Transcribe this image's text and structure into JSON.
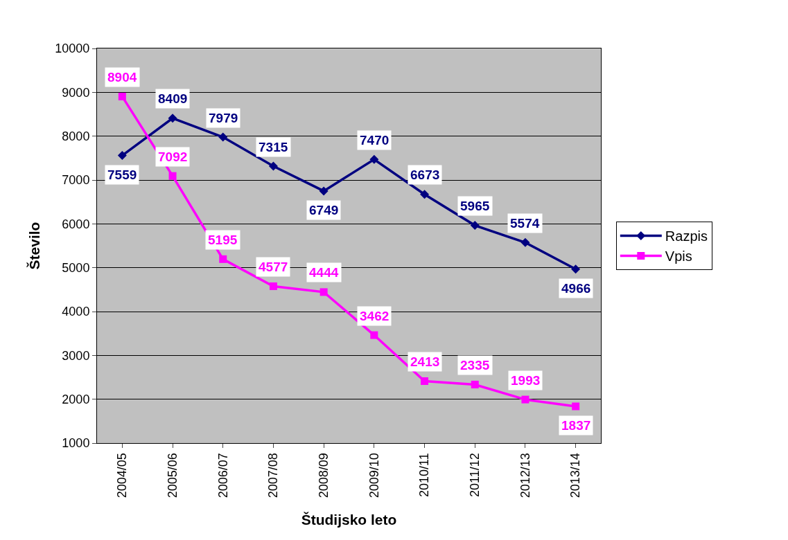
{
  "chart_data": {
    "type": "line",
    "xlabel": "Študijsko leto",
    "ylabel": "Število",
    "categories": [
      "2004/05",
      "2005/06",
      "2006/07",
      "2007/08",
      "2008/09",
      "2009/10",
      "2010/11",
      "2011/12",
      "2012/13",
      "2013/14"
    ],
    "series": [
      {
        "name": "Razpis",
        "color": "#000080",
        "marker": "diamond",
        "values": [
          7559,
          8409,
          7979,
          7315,
          6749,
          7470,
          6673,
          5965,
          5574,
          4966
        ]
      },
      {
        "name": "Vpis",
        "color": "#ff00ff",
        "marker": "square",
        "values": [
          8904,
          7092,
          5195,
          4577,
          4444,
          3462,
          2413,
          2335,
          1993,
          1837
        ]
      }
    ],
    "ylim": [
      1000,
      10000
    ],
    "yticks": [
      1000,
      2000,
      3000,
      4000,
      5000,
      6000,
      7000,
      8000,
      9000,
      10000
    ],
    "grid": "y",
    "legend": "right",
    "data_labels": true,
    "line_style": "solid"
  }
}
